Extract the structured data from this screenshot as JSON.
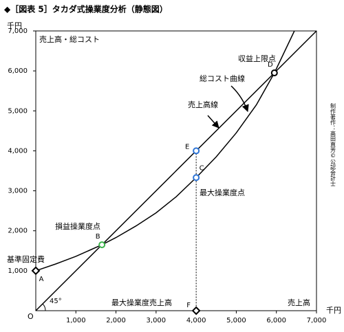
{
  "chart_data": {
    "type": "line",
    "title": "◆［図表 5］タカダ式操業度分析（静態図）",
    "y_unit": "千円",
    "x_unit": "千円",
    "y_label": "売上高・総コスト",
    "x_label": "売上高",
    "origin_label": "O",
    "angle_label": "45°",
    "credit": "制作著作：高田直芳©公認会計士",
    "xlim": [
      0,
      7000
    ],
    "ylim": [
      0,
      7000
    ],
    "xticks": [
      {
        "value": 1000,
        "label": "1,000"
      },
      {
        "value": 2000,
        "label": "2,000"
      },
      {
        "value": 3000,
        "label": "3,000"
      },
      {
        "value": 4000,
        "label": "4,000"
      },
      {
        "value": 5000,
        "label": "5,000"
      },
      {
        "value": 6000,
        "label": "6,000"
      },
      {
        "value": 7000,
        "label": "7,000"
      }
    ],
    "yticks": [
      {
        "value": 1000,
        "label": "1,000"
      },
      {
        "value": 2000,
        "label": "2,000"
      },
      {
        "value": 3000,
        "label": "3,000"
      },
      {
        "value": 4000,
        "label": "4,000"
      },
      {
        "value": 5000,
        "label": "5,000"
      },
      {
        "value": 6000,
        "label": "6,000"
      },
      {
        "value": 7000,
        "label": "7,000"
      }
    ],
    "grid": false,
    "series": [
      {
        "name": "売上高線",
        "color": "#000000",
        "x": [
          0,
          7000
        ],
        "values": [
          0,
          7000
        ]
      },
      {
        "name": "総コスト曲線",
        "color": "#000000",
        "x": [
          0,
          500,
          1000,
          1650,
          2000,
          2500,
          3000,
          3500,
          4000,
          4500,
          5000,
          5500,
          5950,
          6450
        ],
        "values": [
          1000,
          1170,
          1360,
          1650,
          1830,
          2120,
          2450,
          2850,
          3330,
          3850,
          4450,
          5150,
          5950,
          7000
        ]
      }
    ],
    "points": [
      {
        "label": "A",
        "x": 0,
        "y": 1000,
        "marker": "diamond",
        "color": "#000000"
      },
      {
        "label": "B",
        "x": 1650,
        "y": 1650,
        "marker": "circle",
        "color": "#3cb44b"
      },
      {
        "label": "C",
        "x": 4000,
        "y": 3330,
        "marker": "circle",
        "color": "#2e75d6"
      },
      {
        "label": "D",
        "x": 5950,
        "y": 5950,
        "marker": "circle",
        "color": "#000000"
      },
      {
        "label": "E",
        "x": 4000,
        "y": 4000,
        "marker": "circle",
        "color": "#2e75d6"
      },
      {
        "label": "F",
        "x": 4000,
        "y": 0,
        "marker": "diamond",
        "color": "#000000"
      }
    ],
    "annotations": [
      "基準固定費",
      "損益操業度点",
      "最大操業度点",
      "収益上限点",
      "総コスト曲線",
      "売上高線",
      "最大操業度売上高"
    ]
  }
}
